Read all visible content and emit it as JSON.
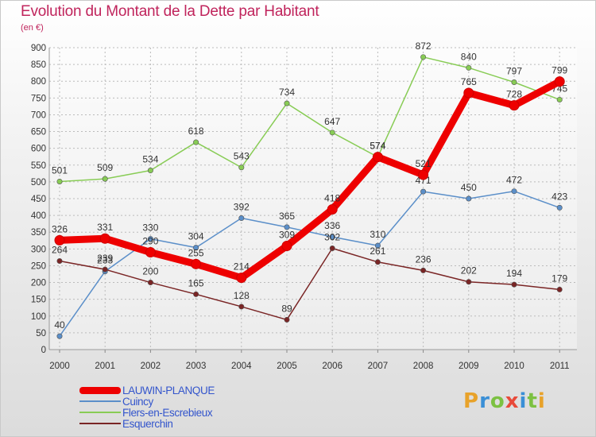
{
  "title": "Evolution du Montant de la Dette par Habitant",
  "subtitle": "(en €)",
  "logo": {
    "letters": [
      "P",
      "r",
      "o",
      "x",
      "i",
      "t",
      "i"
    ],
    "colors": [
      "#e8a22a",
      "#3a8fd6",
      "#7cc142",
      "#e84a3a",
      "#3a8fd6",
      "#7cc142",
      "#e8a22a"
    ]
  },
  "chart_data": {
    "type": "line",
    "x": [
      "2000",
      "2001",
      "2002",
      "2003",
      "2004",
      "2005",
      "2006",
      "2007",
      "2008",
      "2009",
      "2010",
      "2011"
    ],
    "ylim": [
      0,
      900
    ],
    "yticks": [
      0,
      50,
      100,
      150,
      200,
      250,
      300,
      350,
      400,
      450,
      500,
      550,
      600,
      650,
      700,
      750,
      800,
      850,
      900
    ],
    "grid": true,
    "legend": "bottom-left",
    "series": [
      {
        "name": "LAUWIN-PLANQUE",
        "color": "#ee0000",
        "values": [
          326,
          331,
          290,
          255,
          214,
          309,
          418,
          574,
          521,
          765,
          728,
          799
        ]
      },
      {
        "name": "Cuincy",
        "color": "#5b8fc9",
        "values": [
          40,
          233,
          330,
          304,
          392,
          365,
          336,
          310,
          471,
          450,
          472,
          423
        ]
      },
      {
        "name": "Flers-en-Escrebieux",
        "color": "#88cc55",
        "values": [
          501,
          509,
          534,
          618,
          543,
          734,
          647,
          574,
          872,
          840,
          797,
          745
        ]
      },
      {
        "name": "Esquerchin",
        "color": "#7a2525",
        "values": [
          264,
          239,
          200,
          165,
          128,
          89,
          302,
          261,
          236,
          202,
          194,
          179
        ]
      }
    ]
  }
}
